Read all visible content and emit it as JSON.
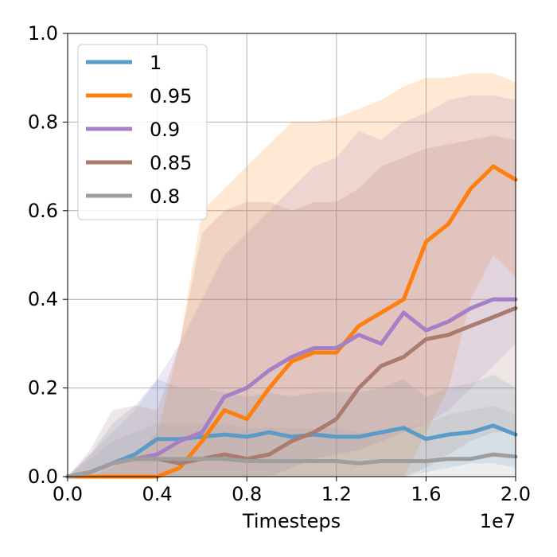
{
  "chart_data": {
    "type": "line",
    "title": "",
    "xlabel": "Timesteps",
    "ylabel": "",
    "x_offset_label": "1e7",
    "xlim": [
      0.0,
      2.0
    ],
    "ylim": [
      0.0,
      1.0
    ],
    "x_ticks": [
      "0.0",
      "0.4",
      "0.8",
      "1.2",
      "1.6",
      "2.0"
    ],
    "y_ticks": [
      "0.0",
      "0.2",
      "0.4",
      "0.6",
      "0.8",
      "1.0"
    ],
    "grid": true,
    "legend_position": "top-left",
    "x": [
      0.0,
      0.1,
      0.2,
      0.3,
      0.4,
      0.5,
      0.6,
      0.7,
      0.8,
      0.9,
      1.0,
      1.1,
      1.2,
      1.3,
      1.4,
      1.5,
      1.6,
      1.7,
      1.8,
      1.9,
      2.0
    ],
    "series": [
      {
        "name": "1",
        "color": "#5b9bc8",
        "values": [
          0.0,
          0.01,
          0.03,
          0.05,
          0.085,
          0.085,
          0.09,
          0.095,
          0.09,
          0.1,
          0.09,
          0.095,
          0.09,
          0.09,
          0.1,
          0.11,
          0.085,
          0.095,
          0.1,
          0.115,
          0.095
        ],
        "lower": [
          0.0,
          0.0,
          0.0,
          0.0,
          0.0,
          0.0,
          0.0,
          0.0,
          0.0,
          0.0,
          0.0,
          0.0,
          0.0,
          0.0,
          0.0,
          0.0,
          0.01,
          0.02,
          0.03,
          0.03,
          0.02
        ],
        "upper": [
          0.0,
          0.05,
          0.12,
          0.16,
          0.22,
          0.2,
          0.2,
          0.19,
          0.18,
          0.19,
          0.18,
          0.19,
          0.19,
          0.19,
          0.2,
          0.22,
          0.18,
          0.2,
          0.21,
          0.23,
          0.2
        ]
      },
      {
        "name": "0.95",
        "color": "#ff7f0e",
        "values": [
          0.0,
          0.0,
          0.0,
          0.0,
          0.0,
          0.02,
          0.08,
          0.15,
          0.13,
          0.2,
          0.26,
          0.28,
          0.28,
          0.34,
          0.37,
          0.4,
          0.53,
          0.57,
          0.65,
          0.7,
          0.67
        ],
        "lower": [
          0.0,
          0.0,
          0.0,
          0.0,
          0.0,
          0.0,
          0.0,
          0.0,
          0.0,
          0.0,
          0.0,
          0.0,
          0.0,
          0.0,
          0.0,
          0.0,
          0.1,
          0.2,
          0.4,
          0.5,
          0.45
        ],
        "upper": [
          0.0,
          0.0,
          0.02,
          0.05,
          0.1,
          0.3,
          0.6,
          0.65,
          0.7,
          0.75,
          0.8,
          0.8,
          0.81,
          0.83,
          0.85,
          0.88,
          0.9,
          0.9,
          0.91,
          0.91,
          0.89
        ]
      },
      {
        "name": "0.9",
        "color": "#a680c4",
        "values": [
          0.0,
          0.01,
          0.03,
          0.04,
          0.05,
          0.08,
          0.1,
          0.18,
          0.2,
          0.24,
          0.27,
          0.29,
          0.29,
          0.32,
          0.3,
          0.37,
          0.33,
          0.35,
          0.38,
          0.4,
          0.4
        ],
        "lower": [
          0.0,
          0.0,
          0.0,
          0.0,
          0.0,
          0.0,
          0.0,
          0.0,
          0.0,
          0.0,
          0.02,
          0.04,
          0.05,
          0.06,
          0.08,
          0.1,
          0.12,
          0.15,
          0.2,
          0.25,
          0.3
        ],
        "upper": [
          0.0,
          0.05,
          0.1,
          0.15,
          0.22,
          0.3,
          0.4,
          0.5,
          0.55,
          0.6,
          0.65,
          0.7,
          0.72,
          0.78,
          0.76,
          0.8,
          0.82,
          0.85,
          0.86,
          0.86,
          0.85
        ]
      },
      {
        "name": "0.85",
        "color": "#a97c6f",
        "values": [
          0.0,
          0.01,
          0.03,
          0.04,
          0.04,
          0.03,
          0.04,
          0.05,
          0.04,
          0.05,
          0.08,
          0.1,
          0.13,
          0.2,
          0.25,
          0.27,
          0.31,
          0.32,
          0.34,
          0.36,
          0.38
        ],
        "lower": [
          0.0,
          0.0,
          0.0,
          0.0,
          0.0,
          0.0,
          0.0,
          0.0,
          0.0,
          0.0,
          0.0,
          0.0,
          0.0,
          0.0,
          0.0,
          0.0,
          0.02,
          0.05,
          0.08,
          0.1,
          0.1
        ],
        "upper": [
          0.0,
          0.06,
          0.15,
          0.16,
          0.15,
          0.3,
          0.55,
          0.6,
          0.62,
          0.62,
          0.6,
          0.62,
          0.62,
          0.65,
          0.7,
          0.72,
          0.74,
          0.75,
          0.76,
          0.77,
          0.76
        ]
      },
      {
        "name": "0.8",
        "color": "#9e9e9e",
        "values": [
          0.0,
          0.01,
          0.03,
          0.04,
          0.04,
          0.04,
          0.04,
          0.04,
          0.035,
          0.035,
          0.035,
          0.035,
          0.035,
          0.03,
          0.035,
          0.035,
          0.035,
          0.04,
          0.04,
          0.05,
          0.045
        ],
        "lower": [
          0.0,
          0.0,
          0.0,
          0.0,
          0.0,
          0.0,
          0.0,
          0.0,
          0.0,
          0.0,
          0.0,
          0.0,
          0.0,
          0.0,
          0.0,
          0.0,
          0.0,
          0.0,
          0.0,
          0.0,
          0.0
        ],
        "upper": [
          0.0,
          0.04,
          0.08,
          0.1,
          0.12,
          0.12,
          0.12,
          0.12,
          0.11,
          0.11,
          0.11,
          0.11,
          0.11,
          0.1,
          0.1,
          0.11,
          0.12,
          0.14,
          0.15,
          0.16,
          0.14
        ]
      }
    ]
  }
}
